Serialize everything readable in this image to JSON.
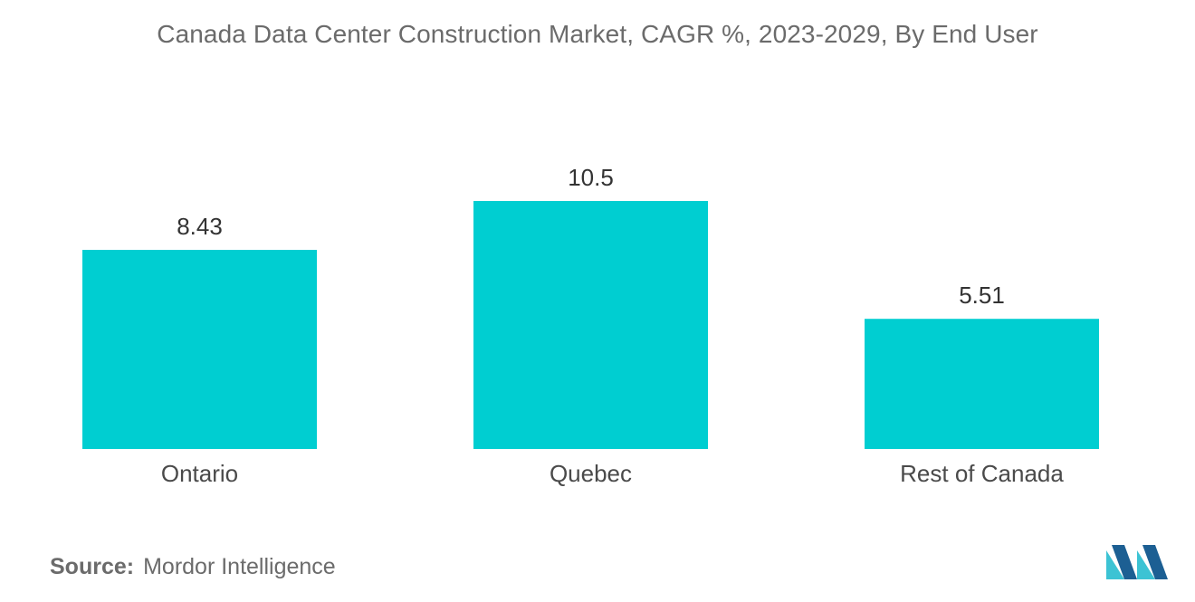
{
  "source": {
    "label": "Source:",
    "value": "Mordor Intelligence"
  },
  "colors": {
    "bar": "#00ced1",
    "logo_dark": "#1c5f93",
    "logo_light": "#3cc3d4"
  },
  "logo_icon": "mordor-intelligence-logo-icon",
  "chart_data": {
    "type": "bar",
    "title": "Canada Data Center Construction Market, CAGR %, 2023-2029, By End User",
    "xlabel": "",
    "ylabel": "",
    "categories": [
      "Ontario",
      "Quebec",
      "Rest of Canada"
    ],
    "values": [
      8.43,
      10.5,
      5.51
    ],
    "value_labels": [
      "8.43",
      "10.5",
      "5.51"
    ],
    "ylim": [
      0,
      10.5
    ],
    "grid": false,
    "legend": "none"
  }
}
